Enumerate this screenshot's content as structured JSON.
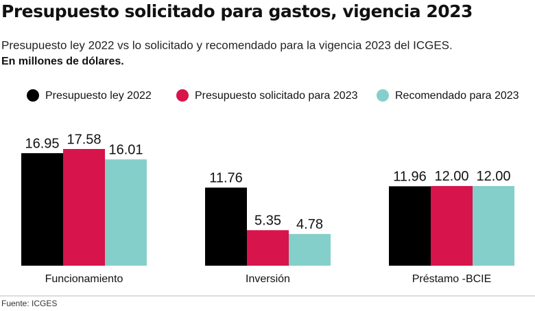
{
  "chart_data": {
    "type": "bar",
    "title": "Presupuesto solicitado para gastos, vigencia 2023",
    "subtitle": "Presupuesto ley 2022 vs lo solicitado y recomendado para la vigencia 2023 del ICGES.",
    "unit_note": "En millones de dólares.",
    "source": "Fuente: ICGES",
    "categories": [
      "Funcionamiento",
      "Inversión",
      "Préstamo -BCIE"
    ],
    "series": [
      {
        "name": "Presupuesto ley 2022",
        "color": "#000000",
        "values": [
          16.95,
          11.76,
          11.96
        ],
        "value_labels": [
          "16.95",
          "11.76",
          "11.96"
        ]
      },
      {
        "name": "Presupuesto solicitado para 2023",
        "color": "#d7144b",
        "values": [
          17.58,
          5.35,
          12
        ],
        "value_labels": [
          "17.58",
          "5.35",
          "12.00"
        ]
      },
      {
        "name": "Recomendado para 2023",
        "color": "#85cfcb",
        "values": [
          16.01,
          4.78,
          12
        ],
        "value_labels": [
          "16.01",
          "4.78",
          "12.00"
        ]
      }
    ]
  }
}
